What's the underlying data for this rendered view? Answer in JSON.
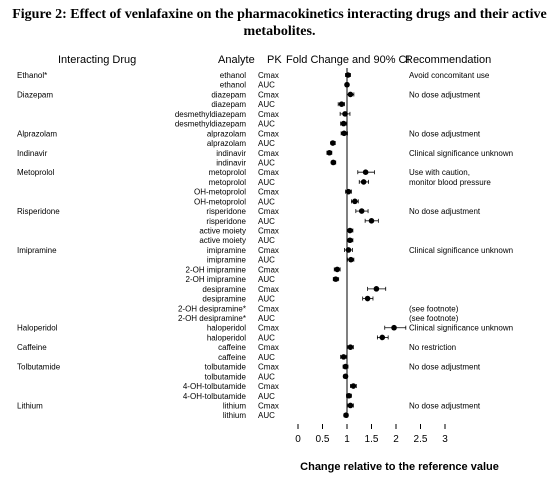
{
  "title_line1": "Figure 2: Effect of venlafaxine on the pharmacokinetics interacting drugs and their active",
  "title_line2": "metabolites.",
  "headers": {
    "drug": "Interacting Drug",
    "analyte": "Analyte",
    "pk": "PK",
    "fold": "Fold Change and 90% CI",
    "rec": "Recommendation"
  },
  "chart_data": {
    "type": "forest",
    "xlabel": "Change relative to the reference value",
    "xlim": [
      0,
      3
    ],
    "xticks": [
      0,
      0.5,
      1,
      1.5,
      2,
      2.5,
      3
    ],
    "xtick_labels": [
      "0",
      "0.5",
      "1",
      "1.5",
      "2",
      "2.5",
      "3"
    ],
    "reference_line": 1,
    "rows": [
      {
        "drug": "Ethanol*",
        "analyte": "ethanol",
        "pk": "Cmax",
        "est": 1.02,
        "lo": 0.97,
        "hi": 1.07,
        "rec": "Avoid concomitant use"
      },
      {
        "drug": "",
        "analyte": "ethanol",
        "pk": "AUC",
        "est": 1.0,
        "lo": 0.97,
        "hi": 1.03,
        "rec": ""
      },
      {
        "drug": "Diazepam",
        "analyte": "diazepam",
        "pk": "Cmax",
        "est": 1.07,
        "lo": 1.0,
        "hi": 1.14,
        "rec": "No dose adjustment"
      },
      {
        "drug": "",
        "analyte": "diazepam",
        "pk": "AUC",
        "est": 0.89,
        "lo": 0.82,
        "hi": 0.95,
        "rec": ""
      },
      {
        "drug": "",
        "analyte": "desmethyldiazepam",
        "pk": "Cmax",
        "est": 0.96,
        "lo": 0.86,
        "hi": 1.06,
        "rec": ""
      },
      {
        "drug": "",
        "analyte": "desmethyldiazepam",
        "pk": "AUC",
        "est": 0.93,
        "lo": 0.87,
        "hi": 0.99,
        "rec": ""
      },
      {
        "drug": "Alprazolam",
        "analyte": "alprazolam",
        "pk": "Cmax",
        "est": 0.94,
        "lo": 0.88,
        "hi": 1.01,
        "rec": "No dose adjustment"
      },
      {
        "drug": "",
        "analyte": "alprazolam",
        "pk": "AUC",
        "est": 0.71,
        "lo": 0.67,
        "hi": 0.76,
        "rec": ""
      },
      {
        "drug": "Indinavir",
        "analyte": "indinavir",
        "pk": "Cmax",
        "est": 0.64,
        "lo": 0.59,
        "hi": 0.69,
        "rec": "Clinical significance unknown"
      },
      {
        "drug": "",
        "analyte": "indinavir",
        "pk": "AUC",
        "est": 0.72,
        "lo": 0.68,
        "hi": 0.77,
        "rec": ""
      },
      {
        "drug": "Metoprolol",
        "analyte": "metoprolol",
        "pk": "Cmax",
        "est": 1.38,
        "lo": 1.22,
        "hi": 1.56,
        "rec": "Use with caution,"
      },
      {
        "drug": "",
        "analyte": "metoprolol",
        "pk": "AUC",
        "est": 1.34,
        "lo": 1.25,
        "hi": 1.44,
        "rec": "monitor blood pressure"
      },
      {
        "drug": "",
        "analyte": "OH-metoprolol",
        "pk": "Cmax",
        "est": 1.03,
        "lo": 0.97,
        "hi": 1.09,
        "rec": ""
      },
      {
        "drug": "",
        "analyte": "OH-metoprolol",
        "pk": "AUC",
        "est": 1.16,
        "lo": 1.09,
        "hi": 1.23,
        "rec": ""
      },
      {
        "drug": "Risperidone",
        "analyte": "risperidone",
        "pk": "Cmax",
        "est": 1.3,
        "lo": 1.18,
        "hi": 1.43,
        "rec": "No dose adjustment"
      },
      {
        "drug": "",
        "analyte": "risperidone",
        "pk": "AUC",
        "est": 1.5,
        "lo": 1.37,
        "hi": 1.64,
        "rec": ""
      },
      {
        "drug": "",
        "analyte": "active moiety",
        "pk": "Cmax",
        "est": 1.06,
        "lo": 1.0,
        "hi": 1.12,
        "rec": ""
      },
      {
        "drug": "",
        "analyte": "active moiety",
        "pk": "AUC",
        "est": 1.06,
        "lo": 1.0,
        "hi": 1.12,
        "rec": ""
      },
      {
        "drug": "Imipramine",
        "analyte": "imipramine",
        "pk": "Cmax",
        "est": 1.03,
        "lo": 0.95,
        "hi": 1.11,
        "rec": "Clinical significance unknown"
      },
      {
        "drug": "",
        "analyte": "imipramine",
        "pk": "AUC",
        "est": 1.08,
        "lo": 1.01,
        "hi": 1.14,
        "rec": ""
      },
      {
        "drug": "",
        "analyte": "2-OH imipramine",
        "pk": "Cmax",
        "est": 0.8,
        "lo": 0.74,
        "hi": 0.86,
        "rec": ""
      },
      {
        "drug": "",
        "analyte": "2-OH imipramine",
        "pk": "AUC",
        "est": 0.77,
        "lo": 0.72,
        "hi": 0.83,
        "rec": ""
      },
      {
        "drug": "",
        "analyte": "desipramine",
        "pk": "Cmax",
        "est": 1.6,
        "lo": 1.42,
        "hi": 1.79,
        "rec": ""
      },
      {
        "drug": "",
        "analyte": "desipramine",
        "pk": "AUC",
        "est": 1.42,
        "lo": 1.32,
        "hi": 1.53,
        "rec": ""
      },
      {
        "drug": "",
        "analyte": "2-OH desipramine*",
        "pk": "Cmax",
        "est": null,
        "lo": null,
        "hi": null,
        "rec": "(see footnote)"
      },
      {
        "drug": "",
        "analyte": "2-OH desipramine*",
        "pk": "AUC",
        "est": null,
        "lo": null,
        "hi": null,
        "rec": "(see footnote)"
      },
      {
        "drug": "Haloperidol",
        "analyte": "haloperidol",
        "pk": "Cmax",
        "est": 1.96,
        "lo": 1.77,
        "hi": 2.2,
        "rec": "Clinical significance unknown"
      },
      {
        "drug": "",
        "analyte": "haloperidol",
        "pk": "AUC",
        "est": 1.72,
        "lo": 1.62,
        "hi": 1.84,
        "rec": ""
      },
      {
        "drug": "Caffeine",
        "analyte": "caffeine",
        "pk": "Cmax",
        "est": 1.07,
        "lo": 1.01,
        "hi": 1.13,
        "rec": "No restriction"
      },
      {
        "drug": "",
        "analyte": "caffeine",
        "pk": "AUC",
        "est": 0.93,
        "lo": 0.87,
        "hi": 0.99,
        "rec": ""
      },
      {
        "drug": "Tolbutamide",
        "analyte": "tolbutamide",
        "pk": "Cmax",
        "est": 0.97,
        "lo": 0.92,
        "hi": 1.02,
        "rec": "No dose adjustment"
      },
      {
        "drug": "",
        "analyte": "tolbutamide",
        "pk": "AUC",
        "est": 0.97,
        "lo": 0.93,
        "hi": 1.01,
        "rec": ""
      },
      {
        "drug": "",
        "analyte": "4-OH-tolbutamide",
        "pk": "Cmax",
        "est": 1.13,
        "lo": 1.07,
        "hi": 1.19,
        "rec": ""
      },
      {
        "drug": "",
        "analyte": "4-OH-tolbutamide",
        "pk": "AUC",
        "est": 1.04,
        "lo": 0.99,
        "hi": 1.09,
        "rec": ""
      },
      {
        "drug": "Lithium",
        "analyte": "lithium",
        "pk": "Cmax",
        "est": 1.07,
        "lo": 1.01,
        "hi": 1.13,
        "rec": "No dose adjustment"
      },
      {
        "drug": "",
        "analyte": "lithium",
        "pk": "AUC",
        "est": 0.98,
        "lo": 0.94,
        "hi": 1.02,
        "rec": ""
      }
    ]
  }
}
